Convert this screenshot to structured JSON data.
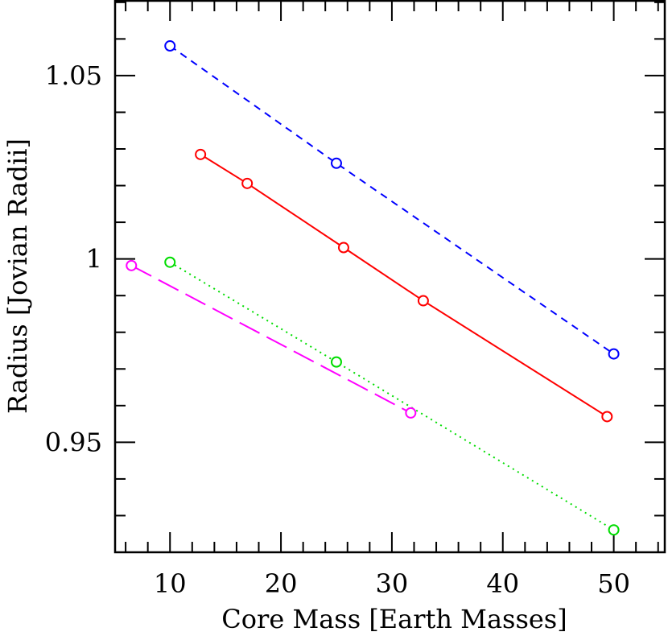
{
  "chart_data": {
    "type": "line",
    "title": "",
    "xlabel": "Core Mass [Earth Masses]",
    "ylabel": "Radius [Jovian Radii]",
    "xlim": [
      5.05,
      54.6
    ],
    "ylim": [
      0.92,
      1.0704
    ],
    "x_ticks": [
      10,
      20,
      30,
      40,
      50
    ],
    "x_tick_labels": [
      "10",
      "20",
      "30",
      "40",
      "50"
    ],
    "y_ticks": [
      0.95,
      1.0,
      1.05
    ],
    "y_tick_labels": [
      "0.95",
      "1",
      "1.05"
    ],
    "x_minor_step": 2,
    "y_minor_step": 0.01,
    "grid": false,
    "legend": "none",
    "marker": "open-circle",
    "series": [
      {
        "color": "#0000ff",
        "linestyle": "short-dash",
        "x": [
          10,
          25,
          50
        ],
        "y": [
          1.0581,
          1.0261,
          0.9741
        ]
      },
      {
        "color": "#ff0000",
        "linestyle": "solid",
        "x": [
          12.75,
          16.96,
          25.65,
          32.83,
          49.4
        ],
        "y": [
          1.0285,
          1.0206,
          1.0031,
          0.9886,
          0.957
        ]
      },
      {
        "color": "#00dd00",
        "linestyle": "dotted",
        "x": [
          10,
          25,
          50
        ],
        "y": [
          0.9991,
          0.9719,
          0.9261
        ]
      },
      {
        "color": "#ff00ff",
        "linestyle": "long-dash",
        "x": [
          6.52,
          31.7
        ],
        "y": [
          0.9982,
          0.958
        ]
      }
    ]
  }
}
